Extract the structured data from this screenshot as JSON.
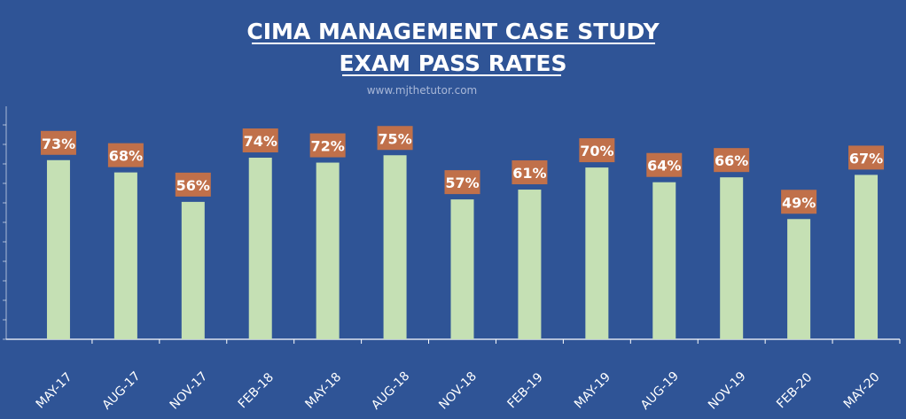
{
  "chart_data": {
    "type": "bar",
    "title": "CIMA MANAGEMENT CASE STUDY",
    "subtitle": "EXAM PASS RATES",
    "watermark": "www.mjthetutor.com",
    "xlabel": "",
    "ylabel": "",
    "ylim": [
      0,
      100
    ],
    "categories": [
      "MAY-17",
      "AUG-17",
      "NOV-17",
      "FEB-18",
      "MAY-18",
      "AUG-18",
      "NOV-18",
      "FEB-19",
      "MAY-19",
      "AUG-19",
      "NOV-19",
      "FEB-20",
      "MAY-20"
    ],
    "values": [
      73,
      68,
      56,
      74,
      72,
      75,
      57,
      61,
      70,
      64,
      66,
      49,
      67
    ],
    "data_labels": [
      "73%",
      "68%",
      "56%",
      "74%",
      "72%",
      "75%",
      "57%",
      "61%",
      "70%",
      "64%",
      "66%",
      "49%",
      "67%"
    ],
    "colors": {
      "background": "#2f5496",
      "bar": "#c5e0b4",
      "label_box": "#c0704a",
      "axis": "#ffffff",
      "text": "#ffffff"
    }
  }
}
